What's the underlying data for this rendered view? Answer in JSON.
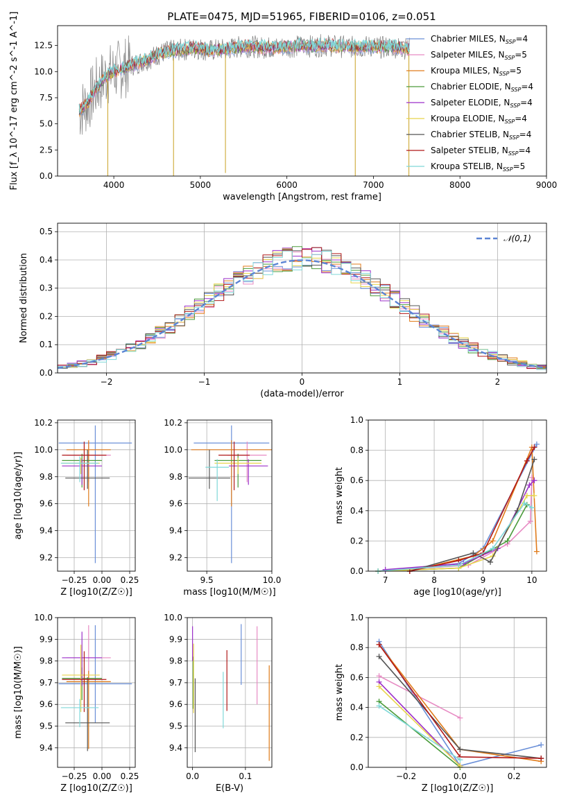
{
  "figure_title": "PLATE=0475, MJD=51965, FIBERID=0106, z=0.051",
  "series_styles": [
    {
      "name": "Chabrier MILES",
      "nssp": "4",
      "color": "#6a8fd8"
    },
    {
      "name": "Salpeter MILES",
      "nssp": "5",
      "color": "#e78ac3"
    },
    {
      "name": "Kroupa MILES",
      "nssp": "5",
      "color": "#e07b1a"
    },
    {
      "name": "Chabrier ELODIE",
      "nssp": "4",
      "color": "#4a9b3a"
    },
    {
      "name": "Salpeter ELODIE",
      "nssp": "4",
      "color": "#9b2fc9"
    },
    {
      "name": "Kroupa ELODIE",
      "nssp": "4",
      "color": "#e8d44a"
    },
    {
      "name": "Chabrier STELIB",
      "nssp": "4",
      "color": "#555555"
    },
    {
      "name": "Salpeter STELIB",
      "nssp": "4",
      "color": "#b01818"
    },
    {
      "name": "Kroupa STELIB",
      "nssp": "5",
      "color": "#7fd8d8"
    }
  ],
  "chart_data": [
    {
      "id": "spectrum",
      "type": "line",
      "title": "PLATE=0475, MJD=51965, FIBERID=0106, z=0.051",
      "xlabel": "wavelength [Angstrom, rest frame]",
      "ylabel": "Flux [f_λ 10^-17 erg cm^-2 s^-1 A^-1]",
      "xlim": [
        3350,
        9000
      ],
      "ylim": [
        0,
        14.4
      ],
      "xticks": [
        4000,
        5000,
        6000,
        7000,
        8000,
        9000
      ],
      "yticks": [
        "0.0",
        "2.5",
        "5.0",
        "7.5",
        "10.0",
        "12.5"
      ],
      "data_color": "#808080",
      "model_color": "#7fd8d8",
      "x": [
        3600,
        3700,
        3800,
        3900,
        4000,
        4100,
        4200,
        4300,
        4400,
        4500,
        4600,
        4700,
        4800,
        4900,
        5000,
        5100,
        5200,
        5300,
        5400,
        5500,
        5600,
        5700,
        5800,
        5900,
        6000,
        6100,
        6200,
        6300,
        6400,
        6500,
        6600,
        6700,
        6800,
        6900,
        7000,
        7100,
        7200,
        7300,
        7400
      ],
      "y": [
        6.2,
        7.0,
        8.5,
        9.5,
        10.0,
        10.3,
        10.6,
        10.9,
        11.2,
        11.6,
        11.9,
        12.0,
        12.1,
        12.2,
        12.2,
        12.0,
        12.1,
        12.1,
        12.3,
        12.4,
        12.4,
        12.3,
        12.3,
        12.3,
        12.4,
        12.4,
        12.5,
        12.4,
        12.5,
        12.5,
        12.4,
        12.4,
        12.3,
        12.4,
        12.4,
        12.3,
        12.4,
        12.3,
        12.2
      ],
      "legend": "upper-right",
      "grid": false
    },
    {
      "id": "residuals",
      "type": "histogram",
      "xlabel": "(data-model)/error",
      "ylabel": "Normed distribution",
      "xlim": [
        -2.5,
        2.5
      ],
      "ylim": [
        0,
        0.53
      ],
      "xticks": [
        "−2",
        "−1",
        "0",
        "1",
        "2"
      ],
      "yticks": [
        "0.0",
        "0.1",
        "0.2",
        "0.3",
        "0.4",
        "0.5"
      ],
      "normal_label": "𝒩(0,1)",
      "normal_color": "#5b84d4",
      "legend": "upper-right",
      "grid": true
    },
    {
      "id": "age_vs_z",
      "type": "errorbar",
      "xlabel": "Z [log10(Z/Z☉)]",
      "ylabel": "age  [log10(age/yr)]",
      "xlim": [
        -0.4,
        0.3
      ],
      "ylim": [
        9.1,
        10.22
      ],
      "xticks": [
        "−0.25",
        "0.00",
        "0.25"
      ],
      "yticks": [
        "9.2",
        "9.4",
        "9.6",
        "9.8",
        "10.0",
        "10.2"
      ],
      "points": [
        {
          "x": -0.06,
          "y": 10.05,
          "xerr": 0.33,
          "yerr": [
            0.89,
            0.13
          ]
        },
        {
          "x": -0.12,
          "y": 9.96,
          "xerr": 0.2,
          "yerr": [
            0.2,
            0.1
          ]
        },
        {
          "x": -0.12,
          "y": 10.0,
          "xerr": 0.2,
          "yerr": [
            0.42,
            0.07
          ]
        },
        {
          "x": -0.18,
          "y": 9.92,
          "xerr": 0.18,
          "yerr": [
            0.2,
            0.05
          ]
        },
        {
          "x": -0.18,
          "y": 9.88,
          "xerr": 0.18,
          "yerr": [
            0.14,
            0.05
          ]
        },
        {
          "x": -0.19,
          "y": 9.9,
          "xerr": 0.17,
          "yerr": [
            0.08,
            0.04
          ]
        },
        {
          "x": -0.13,
          "y": 9.79,
          "xerr": 0.2,
          "yerr": [
            0.08,
            0.21
          ]
        },
        {
          "x": -0.16,
          "y": 9.96,
          "xerr": 0.2,
          "yerr": [
            0.26,
            0.1
          ]
        },
        {
          "x": -0.2,
          "y": 9.9,
          "xerr": 0.17,
          "yerr": [
            0.14,
            0.05
          ]
        }
      ],
      "grid": true
    },
    {
      "id": "age_vs_mass",
      "type": "errorbar",
      "xlabel": "mass [log10(M/M☉)]",
      "ylabel": "",
      "xlim": [
        9.35,
        10.0
      ],
      "ylim": [
        9.1,
        10.22
      ],
      "xticks": [
        "9.5",
        "10.0"
      ],
      "yticks": [
        "9.2",
        "9.4",
        "9.6",
        "9.8",
        "10.0",
        "10.2"
      ],
      "points": [
        {
          "x": 9.69,
          "y": 10.05,
          "xerr": 0.29,
          "yerr": [
            0.89,
            0.13
          ]
        },
        {
          "x": 9.81,
          "y": 9.96,
          "xerr": 0.15,
          "yerr": [
            0.2,
            0.1
          ]
        },
        {
          "x": 9.69,
          "y": 10.0,
          "xerr": 0.31,
          "yerr": [
            0.42,
            0.07
          ]
        },
        {
          "x": 9.74,
          "y": 9.92,
          "xerr": 0.18,
          "yerr": [
            0.2,
            0.05
          ]
        },
        {
          "x": 9.82,
          "y": 9.88,
          "xerr": 0.15,
          "yerr": [
            0.14,
            0.05
          ]
        },
        {
          "x": 9.74,
          "y": 9.9,
          "xerr": 0.18,
          "yerr": [
            0.08,
            0.04
          ]
        },
        {
          "x": 9.52,
          "y": 9.79,
          "xerr": 0.16,
          "yerr": [
            0.08,
            0.21
          ]
        },
        {
          "x": 9.71,
          "y": 9.96,
          "xerr": 0.12,
          "yerr": [
            0.26,
            0.1
          ]
        },
        {
          "x": 9.58,
          "y": 9.87,
          "xerr": 0.09,
          "yerr": [
            0.25,
            0.06
          ]
        }
      ],
      "grid": true
    },
    {
      "id": "massweight_vs_age",
      "type": "line",
      "xlabel": "age  [log10(age/yr)]",
      "ylabel": "mass weight",
      "xlim": [
        6.65,
        10.3
      ],
      "ylim": [
        0,
        1
      ],
      "xticks": [
        "7",
        "8",
        "9",
        "10"
      ],
      "yticks": [
        "0.0",
        "0.2",
        "0.4",
        "0.6",
        "0.8",
        "1.0"
      ],
      "series": [
        {
          "x": [
            6.85,
            8.5,
            9.0,
            10.1
          ],
          "y": [
            0.0,
            0.05,
            0.15,
            0.84
          ]
        },
        {
          "x": [
            6.85,
            8.7,
            9.5,
            9.97,
            10.0
          ],
          "y": [
            0.0,
            0.04,
            0.18,
            0.33,
            0.62
          ]
        },
        {
          "x": [
            7.5,
            8.8,
            9.2,
            10.0,
            10.1
          ],
          "y": [
            0.0,
            0.1,
            0.2,
            0.82,
            0.13
          ]
        },
        {
          "x": [
            6.85,
            8.5,
            9.5,
            9.9
          ],
          "y": [
            0.0,
            0.02,
            0.2,
            0.44
          ]
        },
        {
          "x": [
            7.0,
            8.6,
            9.3,
            9.95,
            10.05
          ],
          "y": [
            0.01,
            0.05,
            0.15,
            0.57,
            0.6
          ]
        },
        {
          "x": [
            6.85,
            8.5,
            9.2,
            9.9,
            10.05
          ],
          "y": [
            0.0,
            0.02,
            0.1,
            0.5,
            0.5
          ]
        },
        {
          "x": [
            7.5,
            8.8,
            9.15,
            9.7,
            10.05
          ],
          "y": [
            0.0,
            0.12,
            0.06,
            0.4,
            0.74
          ]
        },
        {
          "x": [
            7.5,
            8.5,
            9.0,
            9.9,
            10.05
          ],
          "y": [
            0.0,
            0.07,
            0.12,
            0.73,
            0.82
          ]
        },
        {
          "x": [
            6.85,
            8.5,
            9.2,
            9.85,
            10.0
          ],
          "y": [
            0.0,
            0.04,
            0.15,
            0.45,
            0.42
          ]
        }
      ],
      "grid": true
    },
    {
      "id": "mass_vs_z",
      "type": "errorbar",
      "xlabel": "Z [log10(Z/Z☉)]",
      "ylabel": "mass [log10(M/M☉)]",
      "xlim": [
        -0.4,
        0.3
      ],
      "ylim": [
        9.31,
        10.0
      ],
      "xticks": [
        "−0.25",
        "0.00",
        "0.25"
      ],
      "yticks": [
        "9.4",
        "9.5",
        "9.6",
        "9.7",
        "9.8",
        "9.9",
        "10.0"
      ],
      "points": [
        {
          "x": -0.06,
          "y": 9.695,
          "xerr": 0.33,
          "yerr": [
            0.18,
            0.27
          ]
        },
        {
          "x": -0.12,
          "y": 9.815,
          "xerr": 0.2,
          "yerr": [
            0.12,
            0.15
          ]
        },
        {
          "x": -0.12,
          "y": 9.705,
          "xerr": 0.2,
          "yerr": [
            0.31,
            0.05
          ]
        },
        {
          "x": -0.18,
          "y": 9.72,
          "xerr": 0.18,
          "yerr": [
            0.1,
            0.05
          ]
        },
        {
          "x": -0.18,
          "y": 9.815,
          "xerr": 0.18,
          "yerr": [
            0.13,
            0.12
          ]
        },
        {
          "x": -0.19,
          "y": 9.735,
          "xerr": 0.17,
          "yerr": [
            0.17,
            0.14
          ]
        },
        {
          "x": -0.13,
          "y": 9.515,
          "xerr": 0.2,
          "yerr": [
            0.13,
            0.21
          ]
        },
        {
          "x": -0.16,
          "y": 9.715,
          "xerr": 0.2,
          "yerr": [
            0.15,
            0.13
          ]
        },
        {
          "x": -0.2,
          "y": 9.585,
          "xerr": 0.17,
          "yerr": [
            0.09,
            0.04
          ]
        }
      ],
      "grid": true
    },
    {
      "id": "mass_vs_ebv",
      "type": "errorbar",
      "xlabel": "E(B-V)",
      "ylabel": "",
      "xlim": [
        -0.01,
        0.15
      ],
      "ylim": [
        9.31,
        10.0
      ],
      "xticks": [
        "0.0",
        "0.1"
      ],
      "yticks": [
        "9.4",
        "9.5",
        "9.6",
        "9.7",
        "9.8",
        "9.9",
        "10.0"
      ],
      "points": [
        {
          "x": 0.092,
          "y": 9.83,
          "xerr": 0,
          "yerr": [
            0.14,
            0.14
          ]
        },
        {
          "x": 0.122,
          "y": 9.78,
          "xerr": 0,
          "yerr": [
            0.18,
            0.18
          ]
        },
        {
          "x": 0.145,
          "y": 9.56,
          "xerr": 0,
          "yerr": [
            0.22,
            0.22
          ]
        },
        {
          "x": 0.001,
          "y": 9.7,
          "xerr": 0,
          "yerr": [
            0.12,
            0.12
          ]
        },
        {
          "x": 0.0,
          "y": 9.88,
          "xerr": 0,
          "yerr": [
            0.08,
            0.08
          ]
        },
        {
          "x": 0.002,
          "y": 9.72,
          "xerr": 0,
          "yerr": [
            0.16,
            0.16
          ]
        },
        {
          "x": 0.005,
          "y": 9.55,
          "xerr": 0,
          "yerr": [
            0.17,
            0.17
          ]
        },
        {
          "x": 0.065,
          "y": 9.71,
          "xerr": 0,
          "yerr": [
            0.14,
            0.14
          ]
        },
        {
          "x": 0.058,
          "y": 9.62,
          "xerr": 0,
          "yerr": [
            0.13,
            0.13
          ]
        }
      ],
      "grid": true
    },
    {
      "id": "massweight_vs_z",
      "type": "line",
      "xlabel": "Z [log10(Z/Z☉)]",
      "ylabel": "mass weight",
      "xlim": [
        -0.34,
        0.32
      ],
      "ylim": [
        0,
        1
      ],
      "xticks": [
        "−0.2",
        "0.0",
        "0.2"
      ],
      "yticks": [
        "0.0",
        "0.2",
        "0.4",
        "0.6",
        "0.8",
        "1.0"
      ],
      "series": [
        {
          "x": [
            -0.3,
            0.0,
            0.3
          ],
          "y": [
            0.84,
            0.01,
            0.15
          ]
        },
        {
          "x": [
            -0.3,
            0.0
          ],
          "y": [
            0.61,
            0.33
          ]
        },
        {
          "x": [
            -0.3,
            0.0,
            0.3
          ],
          "y": [
            0.82,
            0.12,
            0.04
          ]
        },
        {
          "x": [
            -0.3,
            0.0
          ],
          "y": [
            0.44,
            0.0
          ]
        },
        {
          "x": [
            -0.3,
            0.0
          ],
          "y": [
            0.57,
            0.01
          ]
        },
        {
          "x": [
            -0.3,
            0.0
          ],
          "y": [
            0.54,
            0.01
          ]
        },
        {
          "x": [
            -0.3,
            0.0,
            0.3
          ],
          "y": [
            0.74,
            0.12,
            0.06
          ]
        },
        {
          "x": [
            -0.3,
            0.0,
            0.3
          ],
          "y": [
            0.82,
            0.07,
            0.06
          ]
        },
        {
          "x": [
            -0.3,
            0.0
          ],
          "y": [
            0.41,
            0.05
          ]
        }
      ],
      "grid": true
    }
  ]
}
